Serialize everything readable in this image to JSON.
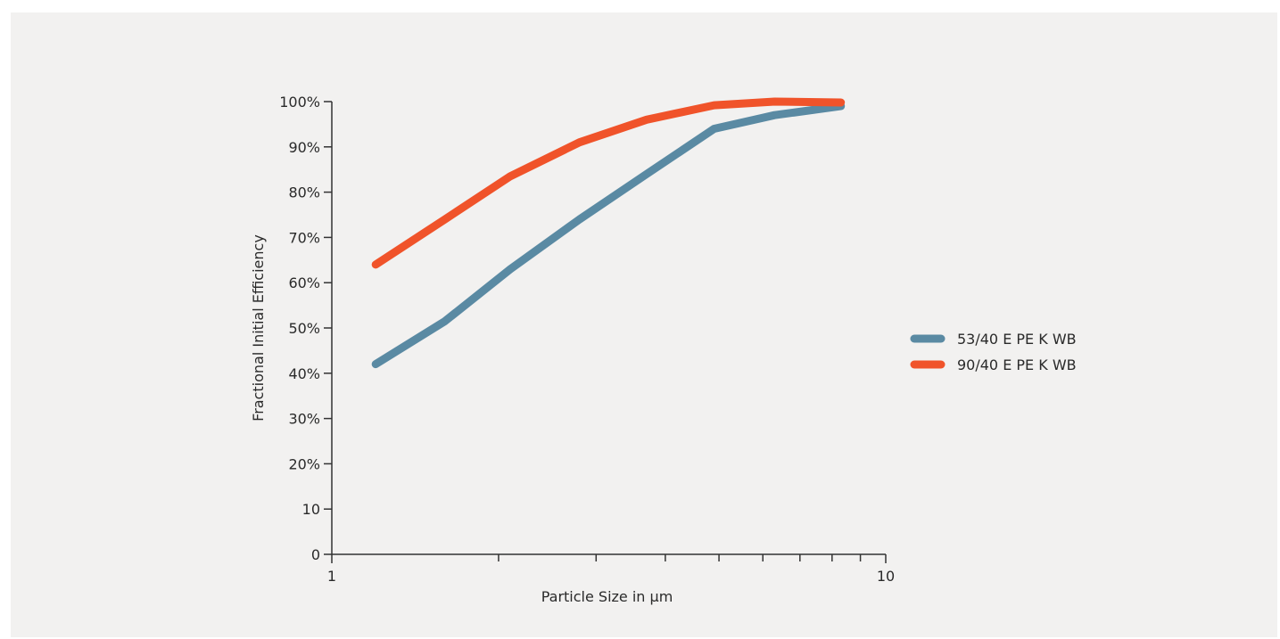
{
  "chart_data": {
    "type": "line",
    "xlabel": "Particle Size in µm",
    "ylabel": "Fractional Initial Efficiency",
    "x_scale": "log",
    "xlim": [
      1,
      10
    ],
    "ylim": [
      0,
      100
    ],
    "x_tick_labels": [
      "1",
      "10"
    ],
    "y_ticks": [
      0,
      10,
      20,
      30,
      40,
      50,
      60,
      70,
      80,
      90,
      100
    ],
    "y_tick_labels": [
      "0",
      "10",
      "20%",
      "30%",
      "40%",
      "50%",
      "60%",
      "70%",
      "80%",
      "90%",
      "100%"
    ],
    "grid": false,
    "legend_position": "right",
    "series": [
      {
        "name": "53/40 E PE K WB",
        "color": "#5a8aa3",
        "x": [
          1.2,
          1.6,
          2.1,
          2.8,
          3.7,
          4.9,
          6.3,
          8.3
        ],
        "y": [
          42,
          51.5,
          63,
          74,
          84,
          94,
          97,
          99
        ]
      },
      {
        "name": "90/40 E PE K WB",
        "color": "#f0532a",
        "x": [
          1.2,
          1.6,
          2.1,
          2.8,
          3.7,
          4.9,
          6.3,
          8.3
        ],
        "y": [
          64,
          74,
          83.5,
          91,
          96,
          99.2,
          100,
          99.8
        ]
      }
    ]
  }
}
